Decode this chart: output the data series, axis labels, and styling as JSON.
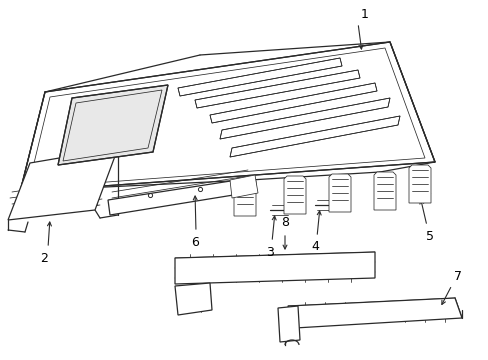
{
  "bg_color": "#ffffff",
  "line_color": "#2a2a2a",
  "label_color": "#000000",
  "fig_width": 4.89,
  "fig_height": 3.6,
  "dpi": 100,
  "lw": 0.9,
  "thin_lw": 0.55,
  "label_fs": 9
}
